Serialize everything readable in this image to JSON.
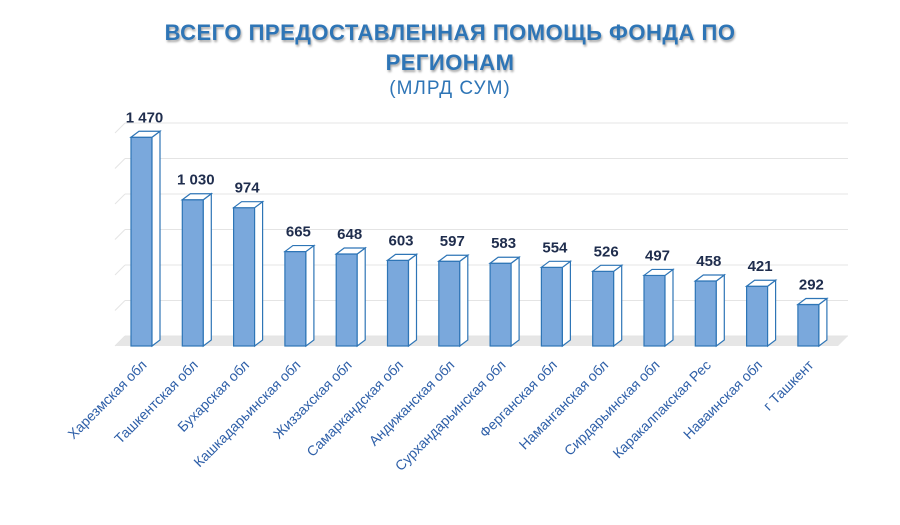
{
  "chart_data": {
    "type": "bar",
    "title_lines": [
      "ВСЕГО ПРЕДОСТАВЛЕННАЯ ПОМОЩЬ ФОНДА ПО",
      "РЕГИОНАМ"
    ],
    "subtitle": "(МЛРД СУМ)",
    "categories": [
      "Харезмская обл",
      "Ташкентская обл",
      "Бухарская обл",
      "Кашкадарьинская обл",
      "Жиззахская обл",
      "Самаркандская обл",
      "Андижанская обл",
      "Сурхандарьинская обл",
      "Ферганская обл",
      "Наманганская обл",
      "Сирдарьинская обл",
      "Каракалпакская Рес",
      "Наваинская обл",
      "г Ташкент"
    ],
    "values": [
      1470,
      1030,
      974,
      665,
      648,
      603,
      597,
      583,
      554,
      526,
      497,
      458,
      421,
      292
    ],
    "value_labels": [
      "1 470",
      "1 030",
      "974",
      "665",
      "648",
      "603",
      "597",
      "583",
      "554",
      "526",
      "497",
      "458",
      "421",
      "292"
    ],
    "ylim": [
      0,
      1500
    ],
    "grid": true,
    "legend": "none",
    "colors": {
      "title": "#2e75b6",
      "bar_front": "#7aa8dc",
      "bar_top": "#ffffff",
      "bar_side": "#ffffff",
      "bar_edge": "#2e75b6",
      "value_label": "#1f2d4d",
      "tick_label": "#2e5fa8",
      "grid": "#e4e4e4",
      "floor": "#e6e6e6"
    }
  }
}
